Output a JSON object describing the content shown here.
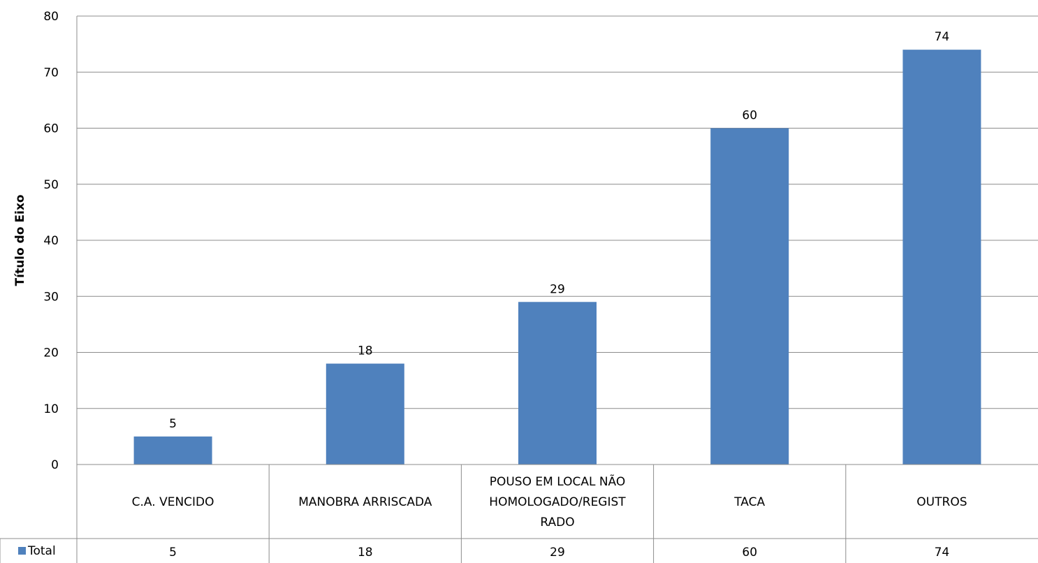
{
  "chart_data": {
    "type": "bar",
    "title": "",
    "xlabel": "",
    "ylabel": "Título do Eixo",
    "ylim": [
      0,
      80
    ],
    "yticks": [
      0,
      10,
      20,
      30,
      40,
      50,
      60,
      70,
      80
    ],
    "grid": true,
    "categories": [
      "C.A. VENCIDO",
      "MANOBRA ARRISCADA",
      "POUSO EM LOCAL NÃO HOMOLOGADO/REGISTRADO",
      "TACA",
      "OUTROS"
    ],
    "category_label_lines": [
      [
        "C.A. VENCIDO"
      ],
      [
        "MANOBRA ARRISCADA"
      ],
      [
        "POUSO EM LOCAL NÃO",
        "HOMOLOGADO/REGIST",
        "RADO"
      ],
      [
        "TACA"
      ],
      [
        "OUTROS"
      ]
    ],
    "series": [
      {
        "name": "Total",
        "color": "#4f81bd",
        "values": [
          5,
          18,
          29,
          60,
          74
        ]
      }
    ],
    "data_labels": true,
    "data_table": true,
    "legend": "data-table-left"
  }
}
